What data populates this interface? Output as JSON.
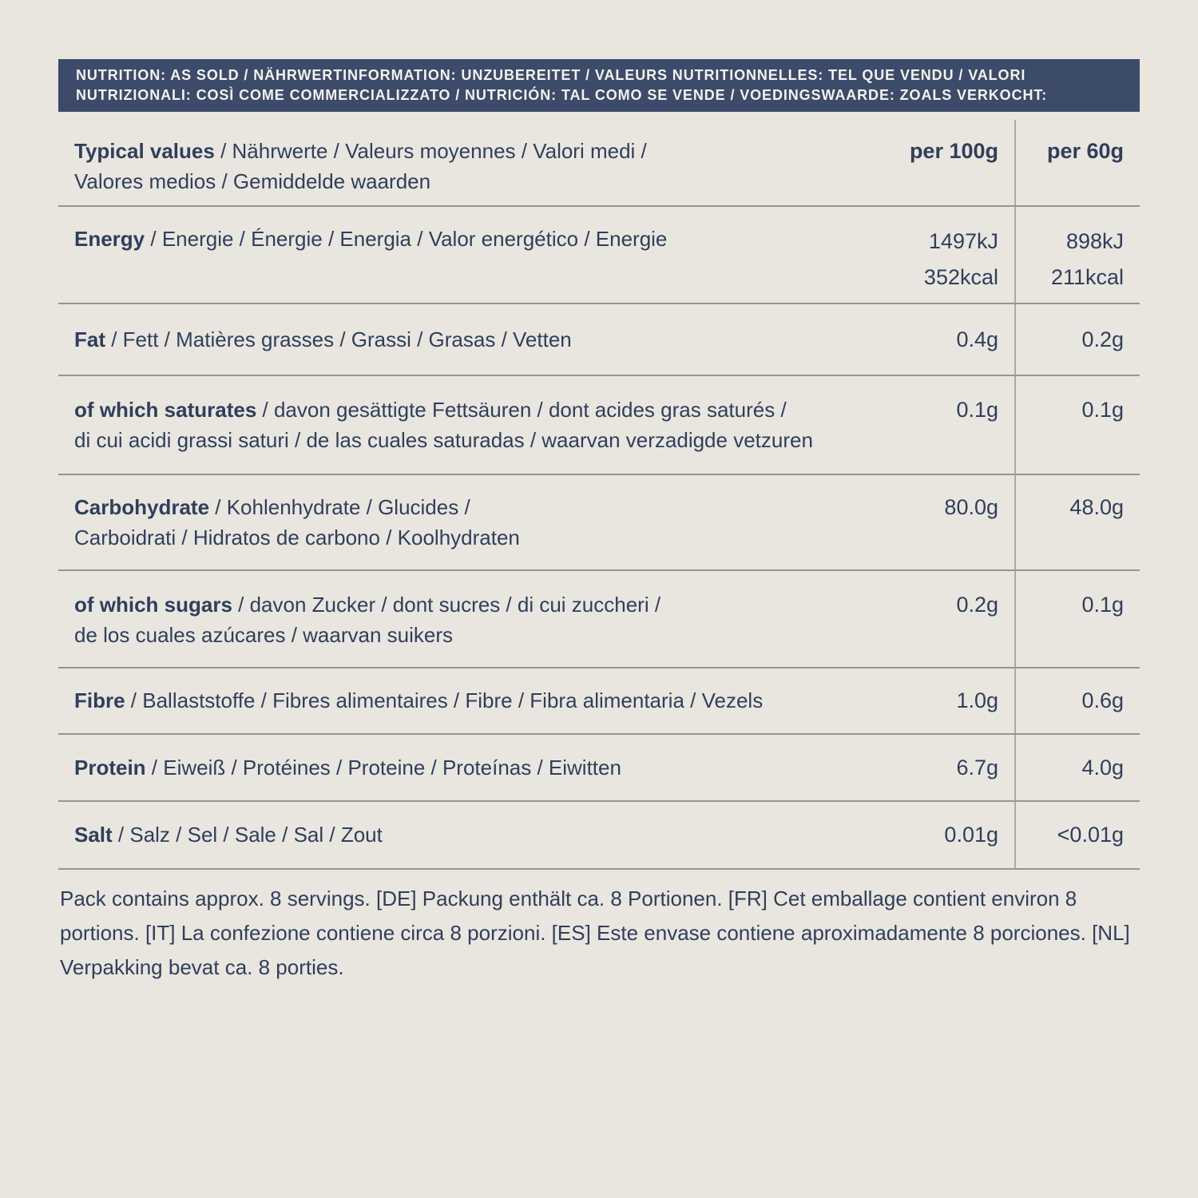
{
  "colors": {
    "background": "#e9e6df",
    "header_bar": "#3c4b69",
    "text": "#2f3f5c",
    "divider": "#96948d",
    "header_text": "#f4f2ed"
  },
  "header": {
    "line1": "NUTRITION: AS SOLD / NÄHRWERTINFORMATION: UNZUBEREITET / VALEURS NUTRITIONNELLES: TEL QUE VENDU / VALORI",
    "line2": "NUTRIZIONALI: COSÌ COME COMMERCIALIZZATO / NUTRICIÓN: TAL COMO SE VENDE / VOEDINGSWAARDE: ZOALS VERKOCHT:"
  },
  "table": {
    "columns": {
      "per_100g": "per 100g",
      "per_60g": "per 60g"
    },
    "header_row": {
      "bold": "Typical values",
      "rest": " / Nährwerte / Valeurs moyennes / Valori medi /",
      "line2": "Valores medios / Gemiddelde waarden"
    },
    "rows": [
      {
        "bold": "Energy",
        "rest": " / Energie / Énergie / Energia / Valor energético / Energie",
        "v1": "1497kJ",
        "v1b": "352kcal",
        "v2": "898kJ",
        "v2b": "211kcal"
      },
      {
        "bold": "Fat",
        "rest": " / Fett / Matières grasses / Grassi / Grasas / Vetten",
        "v1": "0.4g",
        "v2": "0.2g"
      },
      {
        "bold": "of which saturates",
        "rest": " / davon gesättigte Fettsäuren / dont acides gras saturés /",
        "line2": "di cui acidi grassi saturi / de las cuales saturadas / waarvan verzadigde vetzuren",
        "v1": "0.1g",
        "v2": "0.1g"
      },
      {
        "bold": "Carbohydrate",
        "rest": " / Kohlenhydrate / Glucides /",
        "line2": "Carboidrati / Hidratos de carbono / Koolhydraten",
        "v1": "80.0g",
        "v2": "48.0g"
      },
      {
        "bold": "of which sugars",
        "rest": " / davon Zucker / dont sucres / di cui zuccheri /",
        "line2": "de los cuales azúcares / waarvan suikers",
        "v1": "0.2g",
        "v2": "0.1g"
      },
      {
        "bold": "Fibre",
        "rest": " / Ballaststoffe / Fibres alimentaires / Fibre / Fibra alimentaria / Vezels",
        "v1": "1.0g",
        "v2": "0.6g"
      },
      {
        "bold": "Protein",
        "rest": " / Eiweiß / Protéines / Proteine / Proteínas / Eiwitten",
        "v1": "6.7g",
        "v2": "4.0g"
      },
      {
        "bold": "Salt",
        "rest": " / Salz / Sel / Sale / Sal / Zout",
        "v1": "0.01g",
        "v2": "<0.01g"
      }
    ]
  },
  "footer": {
    "text": "Pack contains approx. 8 servings. [DE] Packung enthält ca. 8 Portionen. [FR] Cet emballage contient environ 8 portions. [IT] La confezione contiene circa 8 porzioni. [ES] Este envase contiene aproximadamente 8 porciones. [NL] Verpakking bevat ca. 8 porties."
  }
}
